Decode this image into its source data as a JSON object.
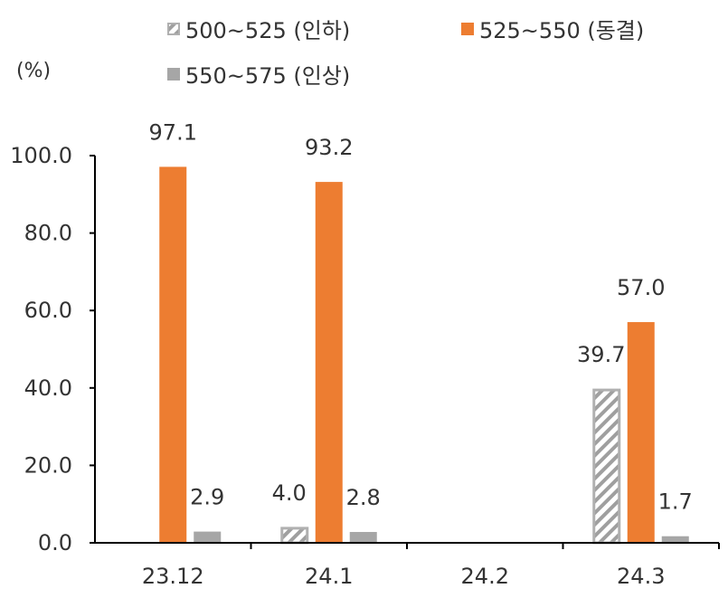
{
  "chart_data": {
    "type": "bar",
    "ylabel": "(%)",
    "ylim": [
      0,
      100
    ],
    "yticks": [
      "0.0",
      "20.0",
      "40.0",
      "60.0",
      "80.0",
      "100.0"
    ],
    "categories": [
      "23.12",
      "24.1",
      "24.2",
      "24.3"
    ],
    "legend_position": "top",
    "series": [
      {
        "name": "500~525 (인하)",
        "style": "hatched",
        "color": "#a6a6a6",
        "values": [
          null,
          4.0,
          null,
          39.7
        ],
        "labels": [
          "",
          "4.0",
          "",
          "39.7"
        ]
      },
      {
        "name": "525~550 (동결)",
        "style": "solid",
        "color": "#ed7d31",
        "values": [
          97.1,
          93.2,
          null,
          57.0
        ],
        "labels": [
          "97.1",
          "93.2",
          "",
          "57.0"
        ]
      },
      {
        "name": "550~575 (인상)",
        "style": "solid",
        "color": "#a6a6a6",
        "values": [
          2.9,
          2.8,
          null,
          1.7
        ],
        "labels": [
          "2.9",
          "2.8",
          "",
          "1.7"
        ]
      }
    ]
  }
}
